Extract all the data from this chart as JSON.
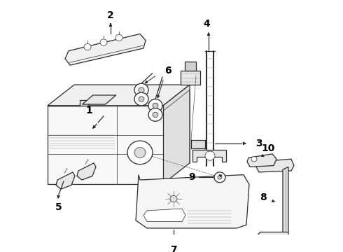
{
  "bg_color": "#ffffff",
  "lc": "#2a2a2a",
  "lw_main": 0.9,
  "lw_thin": 0.5,
  "figsize": [
    4.9,
    3.6
  ],
  "dpi": 100,
  "label_fs": 10,
  "label_color": "#000000"
}
